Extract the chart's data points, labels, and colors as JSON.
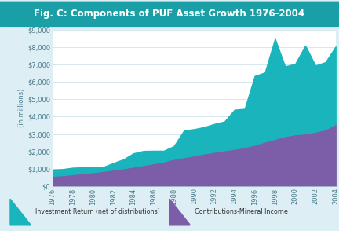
{
  "title": "Fig. C: Components of PUF Asset Growth 1976-2004",
  "title_bg_color": "#1a9fa6",
  "title_text_color": "#ffffff",
  "ylabel": "(in millions)",
  "years": [
    1976,
    1977,
    1978,
    1979,
    1980,
    1981,
    1982,
    1983,
    1984,
    1985,
    1986,
    1987,
    1988,
    1989,
    1990,
    1991,
    1992,
    1993,
    1994,
    1995,
    1996,
    1997,
    1998,
    1999,
    2000,
    2001,
    2002,
    2003,
    2004
  ],
  "contributions_mineral": [
    580,
    620,
    680,
    730,
    790,
    860,
    940,
    1020,
    1110,
    1210,
    1310,
    1410,
    1560,
    1660,
    1760,
    1870,
    1970,
    2060,
    2140,
    2240,
    2380,
    2560,
    2720,
    2880,
    2980,
    3030,
    3130,
    3270,
    3580
  ],
  "total": [
    940,
    970,
    1050,
    1070,
    1090,
    1090,
    1320,
    1530,
    1880,
    2020,
    2030,
    2030,
    2300,
    3200,
    3280,
    3400,
    3580,
    3720,
    4400,
    4450,
    6350,
    6550,
    8500,
    6900,
    7050,
    8100,
    6950,
    7150,
    8050
  ],
  "color_investment": "#1ab5bc",
  "color_contributions": "#7b5ea7",
  "bg_color": "#ddeef5",
  "plot_bg_color": "#ffffff",
  "ylim": [
    0,
    9000
  ],
  "yticks": [
    0,
    1000,
    2000,
    3000,
    4000,
    5000,
    6000,
    7000,
    8000,
    9000
  ],
  "ytick_labels": [
    "$0",
    "$1,000",
    "$2,000",
    "$3,000",
    "$4,000",
    "$5,000",
    "$6,000",
    "$7,000",
    "$8,000",
    "$9,000"
  ],
  "legend_label_investment": "Investment Return (net of distributions)",
  "legend_label_contributions": "Contributions-Mineral Income",
  "grid_color": "#c5dde8",
  "spine_color": "#b0ccd8"
}
